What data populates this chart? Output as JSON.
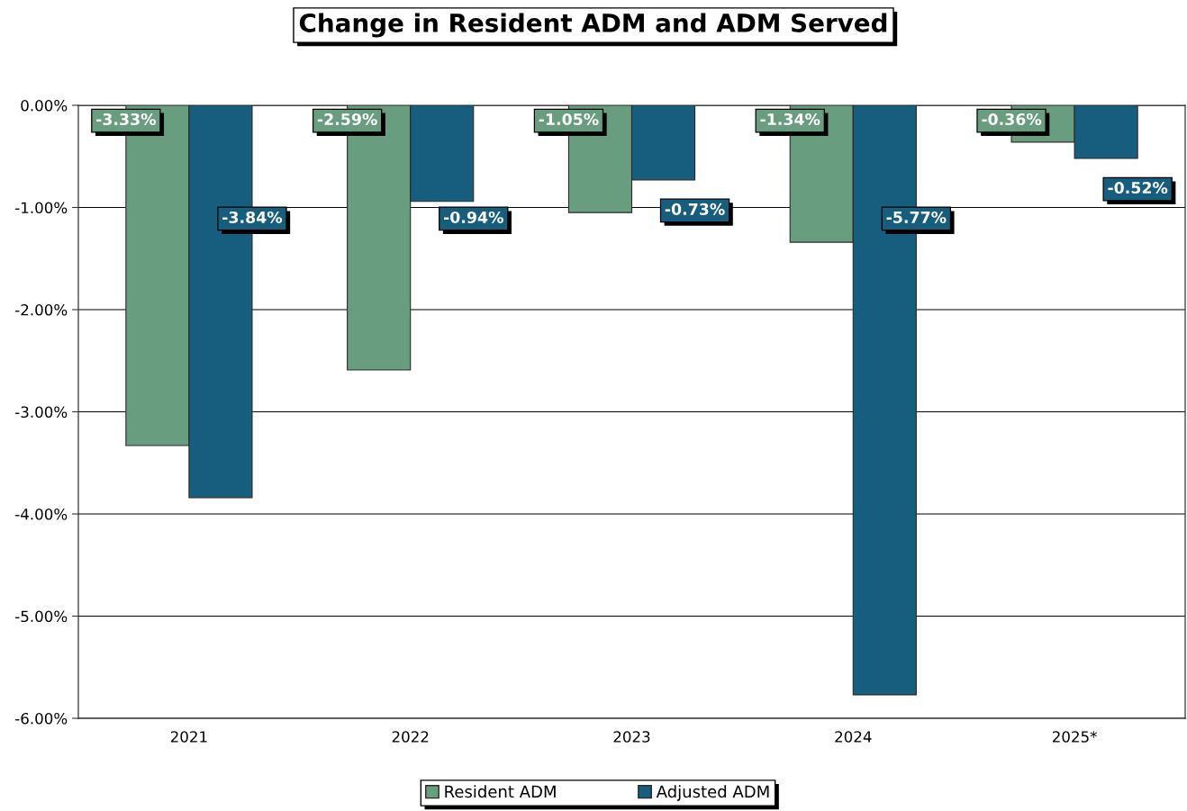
{
  "chart_data": {
    "type": "bar",
    "title": "Change in Resident ADM and ADM Served",
    "categories": [
      "2021",
      "2022",
      "2023",
      "2024",
      "2025*"
    ],
    "series": [
      {
        "name": "Resident ADM",
        "color": "#689d80",
        "values": [
          -3.33,
          -2.59,
          -1.05,
          -1.34,
          -0.36
        ],
        "value_labels": [
          "-3.33%",
          "-2.59%",
          "-1.05%",
          "-1.34%",
          "-0.36%"
        ]
      },
      {
        "name": "Adjusted ADM",
        "color": "#175e7e",
        "values": [
          -3.84,
          -0.94,
          -0.73,
          -5.77,
          -0.52
        ],
        "value_labels": [
          "-3.84%",
          "-0.94%",
          "-0.73%",
          "-5.77%",
          "-0.52%"
        ]
      }
    ],
    "ylim": [
      -6,
      0
    ],
    "yticks": [
      {
        "value": 0,
        "label": "0.00%"
      },
      {
        "value": -1,
        "label": "-1.00%"
      },
      {
        "value": -2,
        "label": "-2.00%"
      },
      {
        "value": -3,
        "label": "-3.00%"
      },
      {
        "value": -4,
        "label": "-4.00%"
      },
      {
        "value": -5,
        "label": "-5.00%"
      },
      {
        "value": -6,
        "label": "-6.00%"
      }
    ],
    "grid": "y",
    "legend": "bottom"
  }
}
